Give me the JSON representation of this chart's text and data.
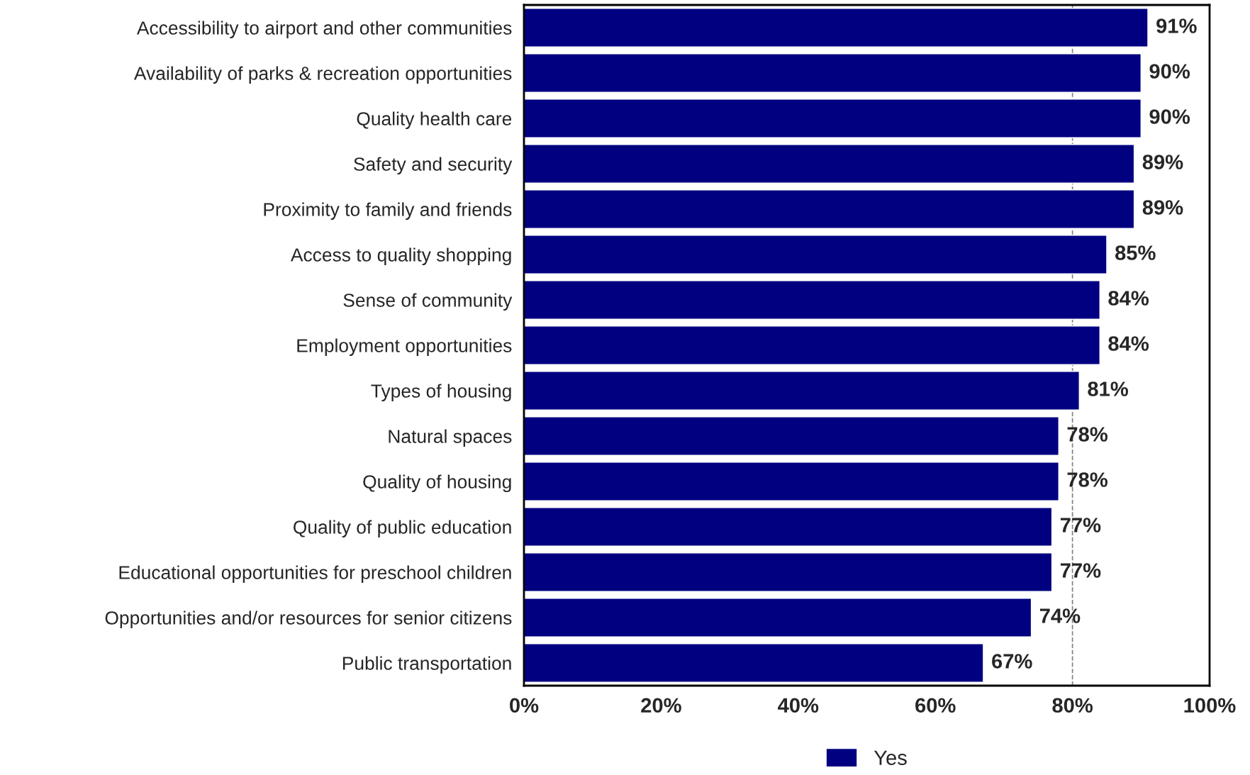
{
  "chart_data": {
    "type": "bar",
    "orientation": "horizontal",
    "categories": [
      "Accessibility to airport and other communities",
      "Availability of parks & recreation opportunities",
      "Quality health care",
      "Safety and security",
      "Proximity to family and friends",
      "Access to quality shopping",
      "Sense of community",
      "Employment opportunities",
      "Types of housing",
      "Natural spaces",
      "Quality of housing",
      "Quality of public education",
      "Educational opportunities for preschool children",
      "Opportunities and/or resources for senior citizens",
      "Public transportation"
    ],
    "series": [
      {
        "name": "Yes",
        "color": "#000080",
        "values": [
          91,
          90,
          90,
          89,
          89,
          85,
          84,
          84,
          81,
          78,
          78,
          77,
          77,
          74,
          67
        ]
      }
    ],
    "value_labels": [
      "91%",
      "90%",
      "90%",
      "89%",
      "89%",
      "85%",
      "84%",
      "84%",
      "81%",
      "78%",
      "78%",
      "77%",
      "77%",
      "74%",
      "67%"
    ],
    "xlim": [
      0,
      100
    ],
    "xticks": [
      {
        "value": 0,
        "label": "0%"
      },
      {
        "value": 20,
        "label": "20%"
      },
      {
        "value": 40,
        "label": "40%"
      },
      {
        "value": 60,
        "label": "60%"
      },
      {
        "value": 80,
        "label": "80%"
      },
      {
        "value": 100,
        "label": "100%"
      }
    ],
    "ref_lines": [
      {
        "axis": "x",
        "value": 80,
        "label": null,
        "color": "#808080",
        "line_style": "dashed"
      }
    ],
    "legend": "bottom",
    "grid": false
  }
}
